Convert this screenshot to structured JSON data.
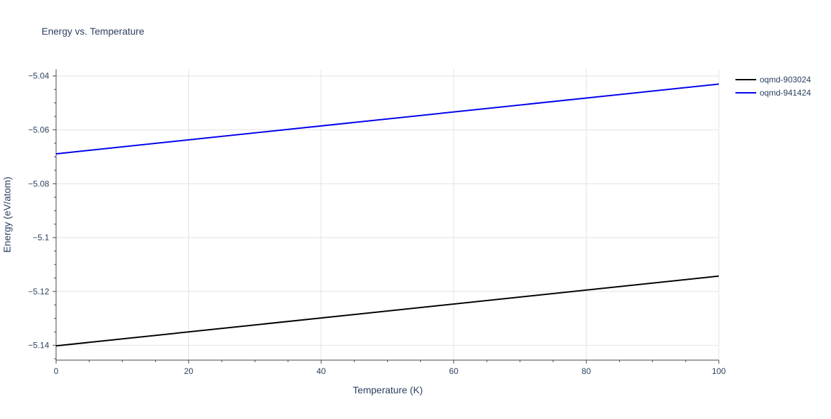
{
  "chart_data": {
    "type": "line",
    "title": "Energy vs. Temperature",
    "xlabel": "Temperature (K)",
    "ylabel": "Energy (eV/atom)",
    "xlim": [
      0,
      100
    ],
    "ylim": [
      -5.1455,
      -5.0375
    ],
    "x_ticks": [
      0,
      20,
      40,
      60,
      80,
      100
    ],
    "y_ticks": [
      -5.14,
      -5.12,
      -5.1,
      -5.08,
      -5.06,
      -5.04
    ],
    "y_tick_labels": [
      "−5.14",
      "−5.12",
      "−5.1",
      "−5.08",
      "−5.06",
      "−5.04"
    ],
    "grid": true,
    "legend_position": "top-right",
    "series": [
      {
        "name": "oqmd-903024",
        "color": "#000000",
        "x": [
          0,
          100
        ],
        "y": [
          -5.1402,
          -5.1143
        ]
      },
      {
        "name": "oqmd-941424",
        "color": "#0000ee",
        "x": [
          0,
          100
        ],
        "y": [
          -5.0689,
          -5.043
        ]
      }
    ]
  }
}
